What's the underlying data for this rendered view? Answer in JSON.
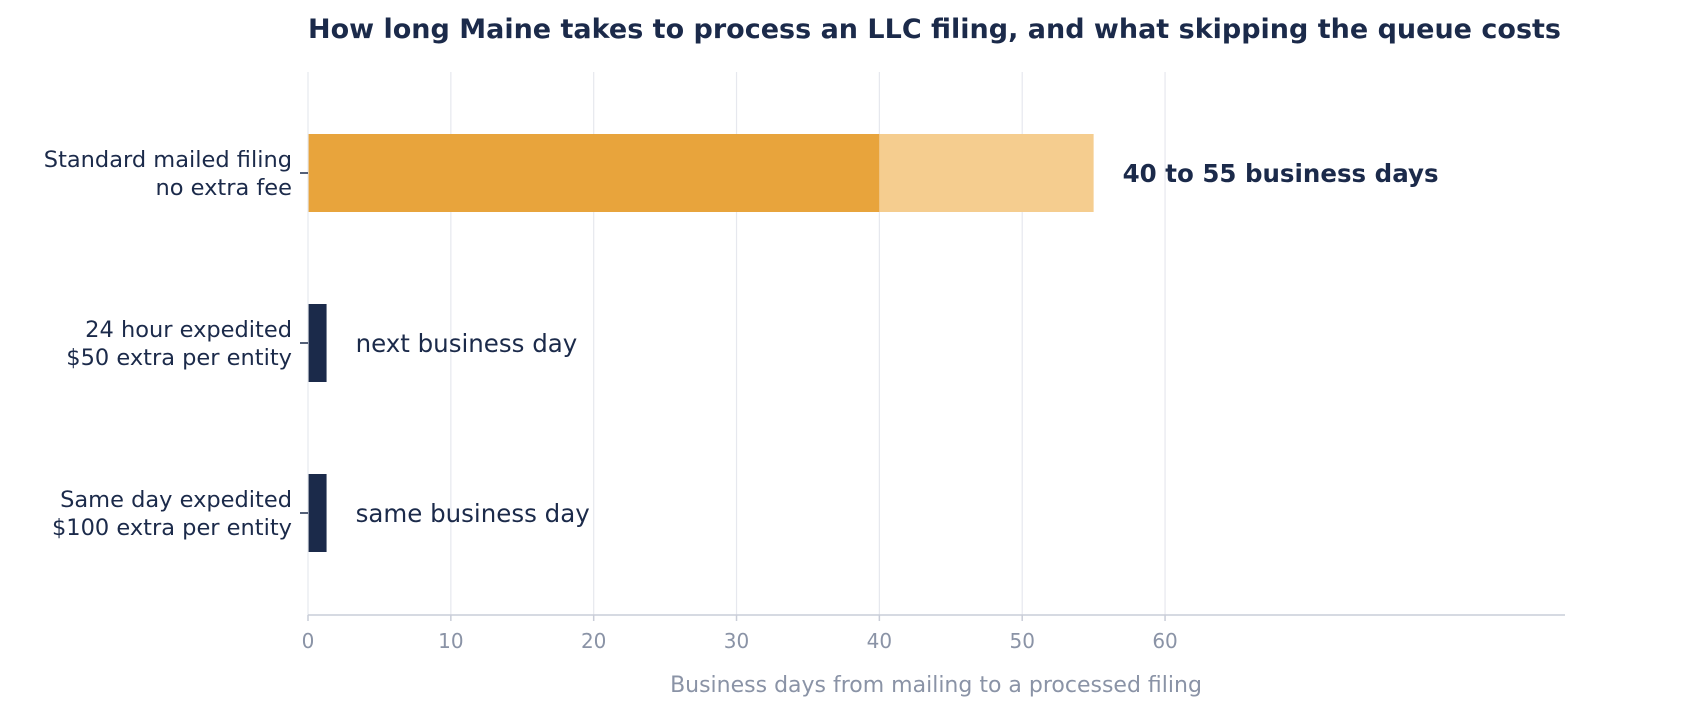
{
  "chart_data": {
    "type": "bar",
    "orientation": "horizontal",
    "title": "How long Maine takes to process an LLC filing, and what skipping the queue costs",
    "xlabel": "Business days from mailing to a processed filing",
    "ylabel": "",
    "xlim": [
      0,
      88
    ],
    "x_ticks": [
      0,
      10,
      20,
      30,
      40,
      50,
      60
    ],
    "grid": "vertical",
    "legend": "none",
    "categories": [
      {
        "id": "standard",
        "label_lines": [
          "Standard mailed filing",
          "no extra fee"
        ],
        "segments": [
          {
            "start": 0,
            "end": 40,
            "color": "#e8a43c"
          },
          {
            "start": 40,
            "end": 55,
            "color": "#f5cd8f"
          }
        ],
        "data_label": "40 to 55 business days",
        "data_label_bold": true
      },
      {
        "id": "expedited-24h",
        "label_lines": [
          "24 hour expedited",
          "$50 extra per entity"
        ],
        "segments": [
          {
            "start": 0,
            "end": 1.3,
            "color": "#1b2a4a"
          }
        ],
        "data_label": "next business day",
        "data_label_bold": false
      },
      {
        "id": "same-day",
        "label_lines": [
          "Same day expedited",
          "$100 extra per entity"
        ],
        "segments": [
          {
            "start": 0,
            "end": 1.3,
            "color": "#1b2a4a"
          }
        ],
        "data_label": "same business day",
        "data_label_bold": false
      }
    ],
    "colors": {
      "text": "#1b2a4a",
      "muted": "#8a93a6",
      "grid": "#e6e8ee",
      "axis": "#c9cdd8"
    }
  }
}
